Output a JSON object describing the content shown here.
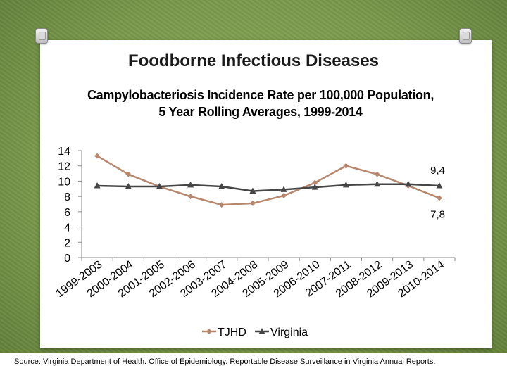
{
  "slide": {
    "title": "Foodborne Infectious Diseases",
    "source": "Source: Virginia Department of Health. Office of Epidemiology. Reportable Disease Surveillance in Virginia Annual Reports."
  },
  "colors": {
    "tjhd": "#b7876d",
    "virginia": "#454545",
    "axis": "#888888",
    "text": "#000000"
  },
  "chart_data": {
    "type": "line",
    "title": "Campylobacteriosis Incidence Rate per 100,000 Population,  5 Year Rolling Averages, 1999-2014",
    "xlabel": "",
    "ylabel": "",
    "ylim": [
      0,
      14
    ],
    "yticks": [
      "0",
      "2",
      "4",
      "6",
      "8",
      "10",
      "12",
      "14"
    ],
    "categories": [
      "1999-2003",
      "2000-2004",
      "2001-2005",
      "2002-2006",
      "2003-2007",
      "2004-2008",
      "2005-2009",
      "2006-2010",
      "2007-2011",
      "2008-2012",
      "2009-2013",
      "2010-2014"
    ],
    "series": [
      {
        "name": "TJHD",
        "marker": "diamond",
        "values": [
          13.3,
          10.9,
          9.3,
          8.0,
          6.9,
          7.1,
          8.1,
          9.8,
          12.0,
          10.9,
          9.4,
          7.8
        ]
      },
      {
        "name": "Virginia",
        "marker": "triangle",
        "values": [
          9.4,
          9.3,
          9.3,
          9.5,
          9.3,
          8.7,
          8.9,
          9.2,
          9.5,
          9.6,
          9.6,
          9.4
        ]
      }
    ],
    "annotations": [
      {
        "series": "Virginia",
        "text": "9,4"
      },
      {
        "series": "TJHD",
        "text": "7,8"
      }
    ],
    "legend": "bottom"
  }
}
